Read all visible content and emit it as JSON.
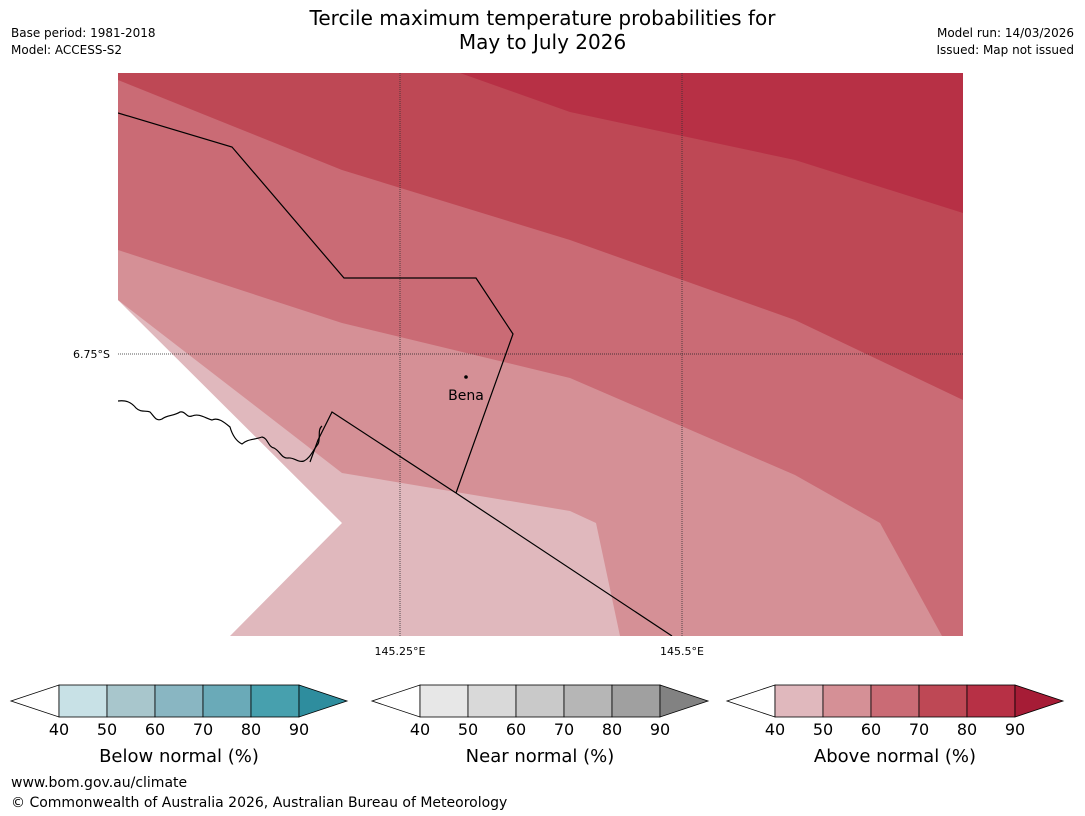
{
  "header": {
    "title_line1": "Tercile maximum temperature probabilities for",
    "title_line2": "May to July 2026",
    "base_period": "Base period: 1981-2018",
    "model": "Model: ACCESS-S2",
    "model_run": "Model run: 14/03/2026",
    "issued": "Issued: Map not issued"
  },
  "map": {
    "place_label": "Bena",
    "lat_label": "6.75°S",
    "lon_labels": [
      "145.25°E",
      "145.5°E"
    ],
    "fill_colors": {
      "above_40_50": "#e0b8bd",
      "above_50_60": "#d59096",
      "above_60_70": "#ca6b75",
      "above_70_80": "#be4855",
      "above_80_90": "#b73045"
    }
  },
  "legends": {
    "below": {
      "title": "Below normal (%)",
      "ticks": [
        "40",
        "50",
        "60",
        "70",
        "80",
        "90"
      ],
      "colors": [
        "#c8e1e6",
        "#a8c6cc",
        "#89b6c2",
        "#6aaab8",
        "#47a0ae",
        "#2e8d9e"
      ]
    },
    "near": {
      "title": "Near normal (%)",
      "ticks": [
        "40",
        "50",
        "60",
        "70",
        "80",
        "90"
      ],
      "colors": [
        "#e7e7e7",
        "#d9d9d9",
        "#c9c9c9",
        "#b6b6b6",
        "#a0a0a0",
        "#828282"
      ]
    },
    "above": {
      "title": "Above normal (%)",
      "ticks": [
        "40",
        "50",
        "60",
        "70",
        "80",
        "90"
      ],
      "colors": [
        "#e0b8bd",
        "#d59096",
        "#ca6b75",
        "#be4855",
        "#b73045",
        "#a61c36"
      ]
    }
  },
  "footer": {
    "url": "www.bom.gov.au/climate",
    "copyright": "© Commonwealth of Australia 2026, Australian Bureau of Meteorology"
  }
}
